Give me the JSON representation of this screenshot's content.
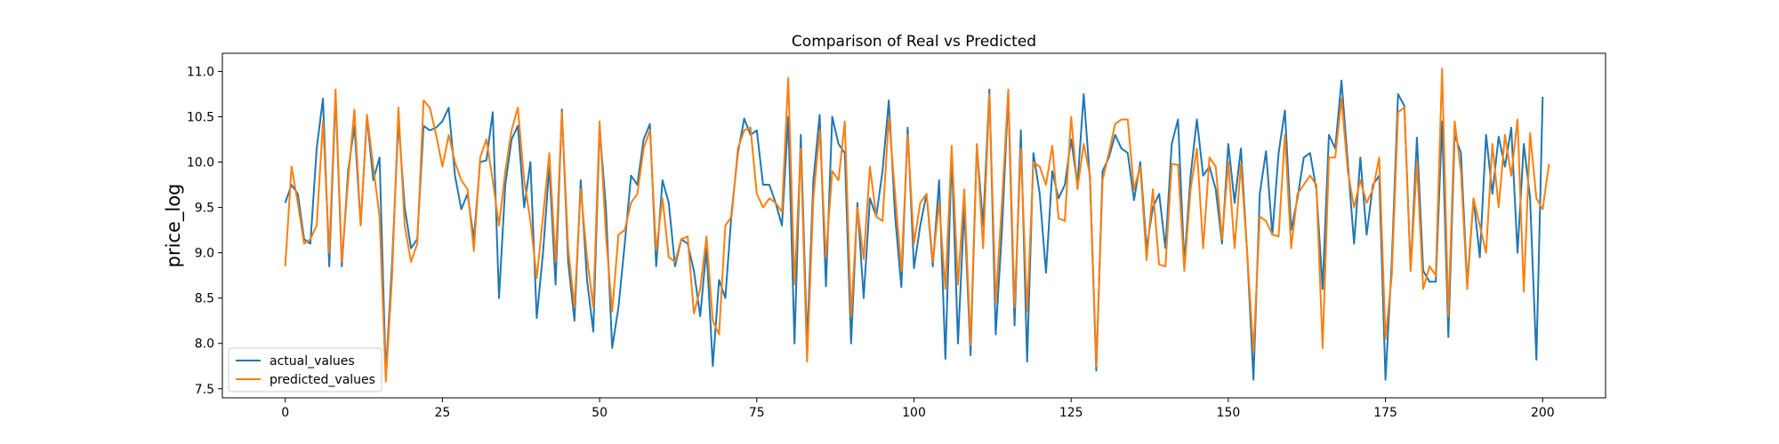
{
  "chart_data": {
    "type": "line",
    "title": "Comparison of Real vs Predicted",
    "xlabel": "",
    "ylabel": "price_log",
    "xlim": [
      -10,
      210
    ],
    "ylim": [
      7.4,
      11.2
    ],
    "xticks": [
      0,
      25,
      50,
      75,
      100,
      125,
      150,
      175,
      200
    ],
    "yticks": [
      7.5,
      8.0,
      8.5,
      9.0,
      9.5,
      10.0,
      10.5,
      11.0
    ],
    "grid": false,
    "legend_position": "lower-left",
    "series": [
      {
        "name": "actual_values",
        "color": "#1f77b4",
        "values": [
          9.55,
          9.75,
          9.65,
          9.15,
          9.1,
          10.15,
          10.7,
          8.85,
          10.75,
          8.85,
          9.9,
          10.4,
          9.3,
          10.5,
          9.8,
          10.05,
          7.65,
          8.9,
          10.45,
          9.5,
          9.05,
          9.15,
          10.4,
          10.35,
          10.38,
          10.45,
          10.6,
          9.85,
          9.48,
          9.65,
          9.15,
          10.0,
          10.02,
          10.55,
          8.5,
          9.75,
          10.25,
          10.4,
          9.5,
          10.0,
          8.28,
          9.0,
          9.95,
          8.65,
          10.58,
          8.9,
          8.25,
          9.8,
          8.7,
          8.13,
          10.38,
          9.5,
          7.95,
          8.4,
          9.1,
          9.85,
          9.75,
          10.25,
          10.42,
          8.85,
          9.8,
          9.55,
          8.85,
          9.15,
          9.1,
          8.8,
          8.3,
          9.05,
          7.75,
          8.7,
          8.5,
          9.45,
          10.1,
          10.48,
          10.3,
          10.35,
          9.75,
          9.75,
          9.55,
          9.3,
          10.5,
          8.0,
          10.3,
          8.0,
          9.8,
          10.52,
          8.63,
          10.5,
          10.2,
          10.1,
          8.0,
          9.55,
          8.5,
          9.6,
          9.4,
          9.9,
          10.68,
          9.4,
          8.62,
          10.38,
          8.83,
          9.3,
          9.65,
          8.85,
          9.8,
          7.83,
          10.1,
          8.0,
          9.5,
          7.87,
          10.18,
          9.3,
          10.8,
          8.1,
          9.25,
          10.75,
          8.2,
          10.35,
          7.8,
          10.1,
          9.65,
          8.78,
          9.9,
          9.6,
          9.75,
          10.25,
          9.75,
          10.75,
          9.8,
          7.7,
          9.9,
          10.05,
          10.3,
          10.15,
          10.1,
          9.58,
          10.0,
          9.05,
          9.5,
          9.65,
          9.05,
          10.2,
          10.47,
          8.88,
          9.85,
          10.47,
          9.85,
          9.95,
          9.7,
          9.1,
          10.2,
          9.55,
          10.15,
          9.0,
          7.6,
          9.65,
          10.12,
          9.2,
          10.1,
          10.57,
          9.25,
          9.6,
          10.05,
          10.1,
          9.7,
          8.6,
          10.3,
          10.15,
          10.9,
          10.0,
          9.1,
          10.05,
          9.2,
          9.75,
          9.85,
          7.6,
          8.9,
          10.75,
          10.62,
          8.8,
          10.27,
          8.8,
          8.68,
          8.68,
          10.45,
          8.07,
          10.3,
          10.1,
          8.65,
          9.6,
          8.95,
          10.3,
          9.65,
          10.28,
          9.95,
          10.38,
          9.0,
          10.2,
          9.6,
          7.82,
          10.72
        ]
      },
      {
        "name": "predicted_values",
        "color": "#ff7f0e",
        "values": [
          8.85,
          9.95,
          9.55,
          9.1,
          9.15,
          9.3,
          10.45,
          9.0,
          10.8,
          8.9,
          9.8,
          10.58,
          9.3,
          10.52,
          9.95,
          9.4,
          7.58,
          8.75,
          10.6,
          9.3,
          8.9,
          9.1,
          10.68,
          10.6,
          10.3,
          9.95,
          10.3,
          10.0,
          9.8,
          9.7,
          9.02,
          10.05,
          10.25,
          9.8,
          9.3,
          9.9,
          10.35,
          10.6,
          9.8,
          9.35,
          8.72,
          9.4,
          10.1,
          8.9,
          10.55,
          9.05,
          8.4,
          9.7,
          8.95,
          8.4,
          10.45,
          9.2,
          8.35,
          9.2,
          9.25,
          9.55,
          9.65,
          10.15,
          10.35,
          9.02,
          9.6,
          8.95,
          8.9,
          9.15,
          9.18,
          8.33,
          8.6,
          9.18,
          8.25,
          8.1,
          9.3,
          9.4,
          10.15,
          10.35,
          10.38,
          9.65,
          9.5,
          9.6,
          9.55,
          9.45,
          10.93,
          8.65,
          10.15,
          7.8,
          9.6,
          10.35,
          8.95,
          9.9,
          9.8,
          10.45,
          8.3,
          9.5,
          8.93,
          9.95,
          9.4,
          9.35,
          10.5,
          9.65,
          8.8,
          10.3,
          9.1,
          9.55,
          9.65,
          8.9,
          9.55,
          8.6,
          10.18,
          8.65,
          9.7,
          7.98,
          10.2,
          9.05,
          10.75,
          8.45,
          9.55,
          10.8,
          8.4,
          10.15,
          8.35,
          10.0,
          9.95,
          9.75,
          10.18,
          9.38,
          9.35,
          10.5,
          9.7,
          10.2,
          9.85,
          7.75,
          9.8,
          10.1,
          10.42,
          10.47,
          10.47,
          9.7,
          9.95,
          8.92,
          9.7,
          8.87,
          8.85,
          9.98,
          9.97,
          8.8,
          9.7,
          10.15,
          9.05,
          10.05,
          9.95,
          9.15,
          10.0,
          9.05,
          9.98,
          9.0,
          7.9,
          9.4,
          9.35,
          9.2,
          9.18,
          10.3,
          9.05,
          9.65,
          9.75,
          9.85,
          9.75,
          7.95,
          10.05,
          10.05,
          10.7,
          9.9,
          9.5,
          9.8,
          9.55,
          9.7,
          10.05,
          8.05,
          8.75,
          10.55,
          10.6,
          8.8,
          10.0,
          8.6,
          8.85,
          8.75,
          11.03,
          8.3,
          10.45,
          9.9,
          8.6,
          9.6,
          9.3,
          9.0,
          10.2,
          9.5,
          10.3,
          9.85,
          10.47,
          8.57,
          10.32,
          9.6,
          9.48,
          9.98
        ]
      }
    ]
  }
}
